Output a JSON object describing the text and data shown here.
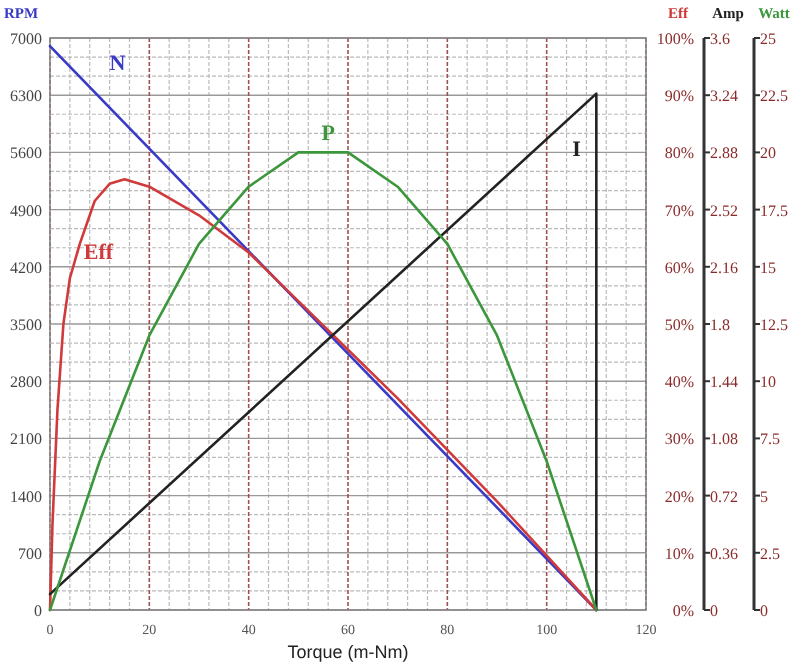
{
  "chart_data": [
    {
      "type": "line",
      "xlabel": "Torque (m-Nm)",
      "ylabel": "RPM",
      "y2label": "Eff",
      "y3label": "Amp",
      "xlim": [
        0,
        120
      ],
      "xticks": [
        0,
        20,
        40,
        60,
        80,
        100,
        120
      ],
      "ylim": [
        0,
        7000
      ],
      "yticks": [
        0,
        700,
        1400,
        2100,
        2800,
        3500,
        4200,
        4900,
        5600,
        6300,
        7000
      ],
      "y2lim": [
        0,
        100
      ],
      "y2ticks": [
        {
          "value": 0,
          "label": "0%"
        },
        {
          "value": 10,
          "label": "10%"
        },
        {
          "value": 20,
          "label": "20%"
        },
        {
          "value": 30,
          "label": "30%"
        },
        {
          "value": 40,
          "label": "40%"
        },
        {
          "value": 50,
          "label": "50%"
        },
        {
          "value": 60,
          "label": "60%"
        },
        {
          "value": 70,
          "label": "70%"
        },
        {
          "value": 80,
          "label": "80%"
        },
        {
          "value": 90,
          "label": "90%"
        },
        {
          "value": 100,
          "label": "100%"
        }
      ],
      "y3lim": [
        0,
        3.6
      ],
      "y3ticks": [
        0,
        0.36,
        0.72,
        1.08,
        1.44,
        1.8,
        2.16,
        2.52,
        2.88,
        3.24,
        3.6
      ],
      "grid": true,
      "marker": "none",
      "line_style": "solid",
      "series": [
        {
          "name": "N",
          "color": "#3a3ac8",
          "x": [
            0,
            110
          ],
          "values": [
            6900,
            0
          ]
        },
        {
          "name": "Eff",
          "color": "#d03a3a",
          "axis": "y2",
          "x": [
            0,
            0.5,
            1.5,
            2.7,
            4,
            6,
            9,
            12,
            15,
            20,
            30,
            40,
            50,
            60,
            70,
            80,
            90,
            100,
            110
          ],
          "values": [
            0,
            15,
            35,
            50,
            58,
            64,
            71.5,
            74.5,
            75.3,
            74,
            69,
            62.5,
            54,
            45.5,
            37,
            28,
            19,
            9.5,
            0
          ]
        },
        {
          "name": "I",
          "color": "#222222",
          "axis": "y3",
          "x": [
            0,
            110,
            110
          ],
          "values": [
            0.1,
            3.25,
            0
          ]
        }
      ]
    },
    {
      "type": "line",
      "ylabel": "Watt",
      "xlim": [
        0,
        120
      ],
      "ylim": [
        0,
        25
      ],
      "yticks": [
        0,
        2.5,
        5,
        7.5,
        10,
        12.5,
        15,
        17.5,
        20,
        22.5,
        25
      ],
      "tick_labels": "y",
      "marker": "none",
      "line_style": "solid",
      "series": [
        {
          "name": "P",
          "color": "#3c963c",
          "x": [
            0,
            10,
            20,
            30,
            40,
            50,
            55,
            60,
            70,
            80,
            90,
            100,
            110
          ],
          "values": [
            0,
            6.5,
            12,
            16,
            18.5,
            20,
            20,
            20,
            18.5,
            16,
            12,
            6.5,
            0
          ]
        }
      ]
    }
  ]
}
